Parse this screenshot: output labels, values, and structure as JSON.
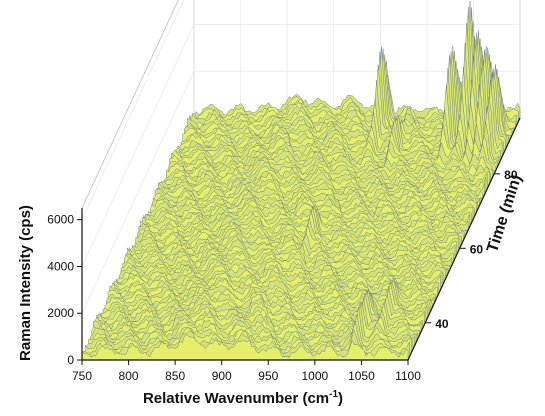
{
  "chart_data": {
    "type": "area",
    "title": "",
    "xlabel": "Relative Wavenumber (cm",
    "xlabel_sup": "-1",
    "xlabel_end": ")",
    "ylabel": "Raman Intensity (cps)",
    "zlabel": "Time (min)",
    "x_ticks": [
      750,
      800,
      850,
      900,
      950,
      1000,
      1050,
      1100
    ],
    "y_ticks": [
      0,
      2000,
      4000,
      6000
    ],
    "z_ticks": [
      40,
      60,
      80
    ],
    "xlim": [
      750,
      1100
    ],
    "ylim": [
      0,
      6500
    ],
    "zlim": [
      30,
      95
    ],
    "grid": true,
    "colors": {
      "fill_low": "#e6ef6a",
      "fill_high": "#8fa6c8",
      "line": "#4a5f7a",
      "wall": "#bdbdbd"
    },
    "peaks": [
      {
        "x": 960,
        "z": 90,
        "height": 3300
      },
      {
        "x": 985,
        "z": 85,
        "height": 1200
      },
      {
        "x": 1040,
        "z": 88,
        "height": 3800
      },
      {
        "x": 1055,
        "z": 90,
        "height": 5200
      },
      {
        "x": 1068,
        "z": 88,
        "height": 4600
      },
      {
        "x": 1078,
        "z": 87,
        "height": 4200
      },
      {
        "x": 1088,
        "z": 86,
        "height": 3300
      },
      {
        "x": 1040,
        "z": 36,
        "height": 1500
      },
      {
        "x": 1060,
        "z": 40,
        "height": 1200
      },
      {
        "x": 940,
        "z": 60,
        "height": 900
      }
    ]
  }
}
